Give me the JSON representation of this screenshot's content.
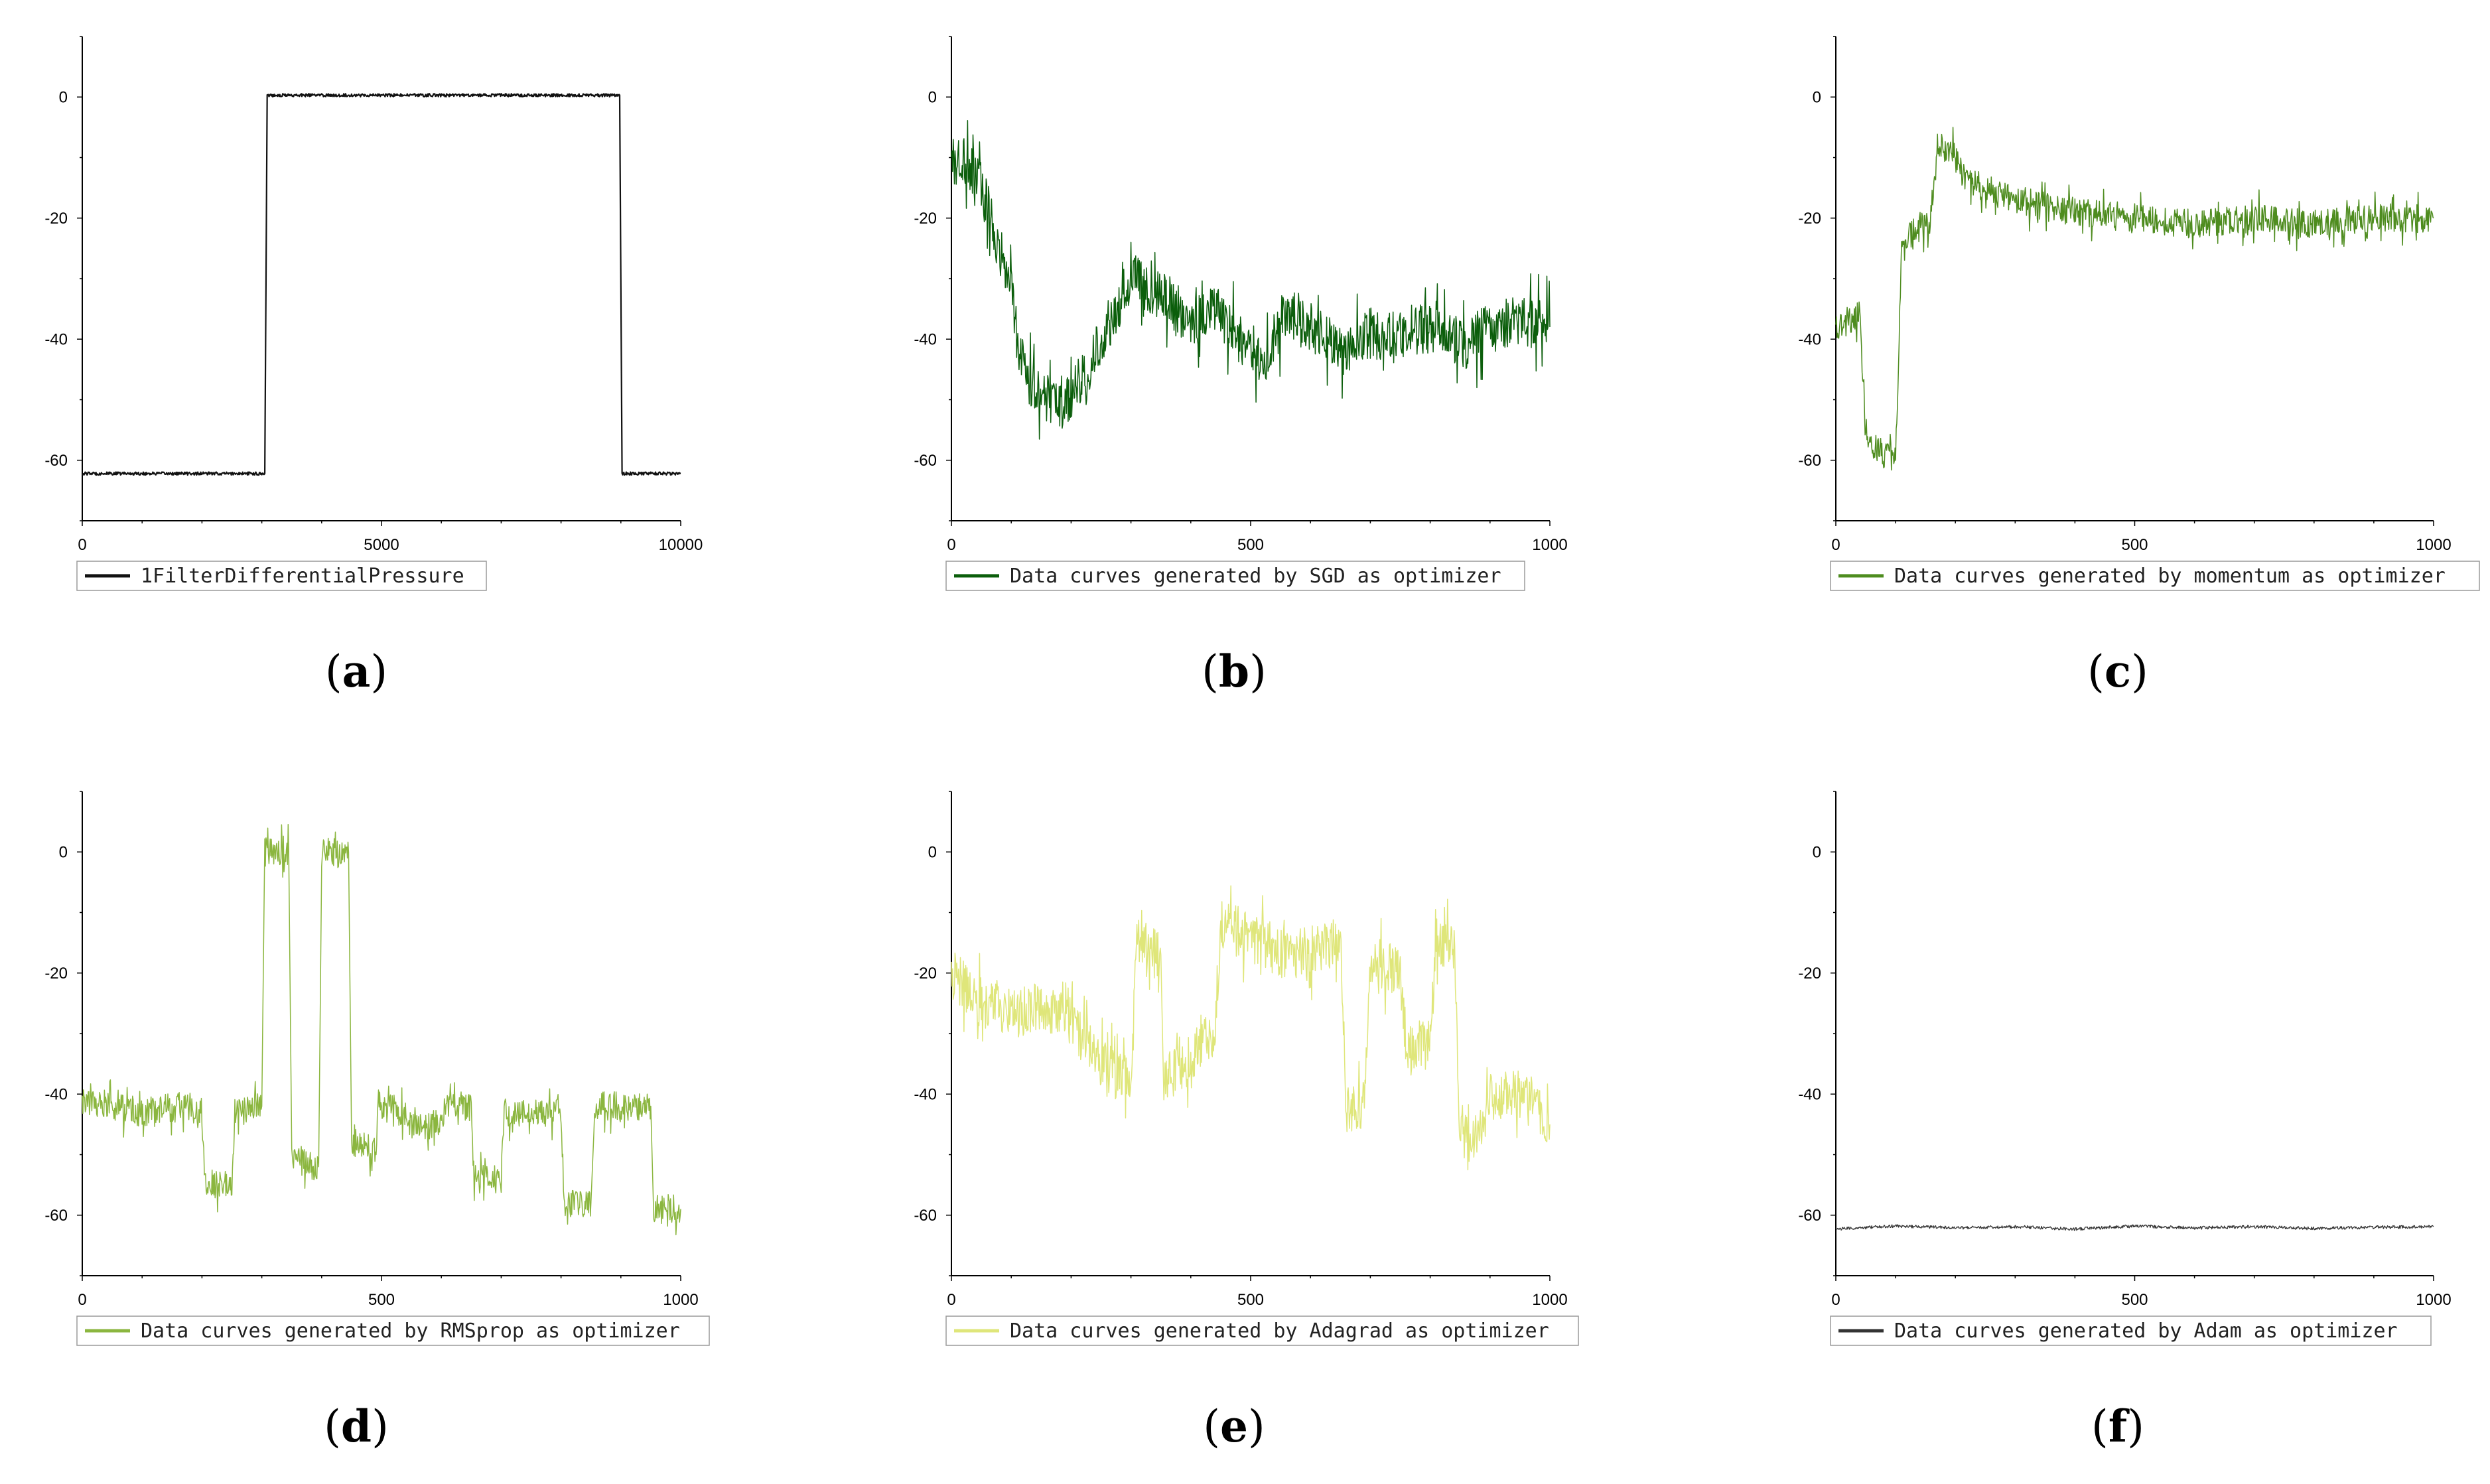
{
  "chart_data": [
    {
      "id": "a",
      "type": "line",
      "panel_label": "a",
      "xlim": [
        0,
        10000
      ],
      "ylim": [
        -70,
        10
      ],
      "x_ticks": [
        0,
        5000,
        10000
      ],
      "y_ticks": [
        0,
        -20,
        -40,
        -60
      ],
      "grid": false,
      "legend_position": "bottom",
      "series": [
        {
          "name": "1FilterDifferentialPressure",
          "color": "#111111",
          "line_width": 2.2,
          "noise": "tiny",
          "points": [
            [
              0,
              -62.2
            ],
            [
              3050,
              -62.2
            ],
            [
              3090,
              0.3
            ],
            [
              8980,
              0.3
            ],
            [
              9020,
              -62.2
            ],
            [
              10000,
              -62.2
            ]
          ]
        }
      ]
    },
    {
      "id": "b",
      "type": "line",
      "panel_label": "b",
      "xlim": [
        0,
        1000
      ],
      "ylim": [
        -70,
        10
      ],
      "x_ticks": [
        0,
        500,
        1000
      ],
      "y_ticks": [
        0,
        -20,
        -40,
        -60
      ],
      "grid": false,
      "legend_position": "bottom",
      "series": [
        {
          "name": "Data curves generated by SGD as optimizer",
          "color": "#0b5e0b",
          "line_width": 1.5,
          "noise": "high",
          "points": [
            [
              0,
              -10
            ],
            [
              40,
              -12
            ],
            [
              60,
              -18
            ],
            [
              80,
              -25
            ],
            [
              100,
              -32
            ],
            [
              110,
              -40
            ],
            [
              130,
              -47
            ],
            [
              180,
              -52
            ],
            [
              230,
              -45
            ],
            [
              260,
              -38
            ],
            [
              300,
              -30
            ],
            [
              360,
              -33
            ],
            [
              400,
              -38
            ],
            [
              440,
              -35
            ],
            [
              480,
              -40
            ],
            [
              520,
              -43
            ],
            [
              560,
              -36
            ],
            [
              600,
              -38
            ],
            [
              660,
              -42
            ],
            [
              700,
              -39
            ],
            [
              740,
              -40
            ],
            [
              800,
              -38
            ],
            [
              860,
              -41
            ],
            [
              900,
              -38
            ],
            [
              960,
              -37
            ],
            [
              1000,
              -38
            ]
          ]
        }
      ]
    },
    {
      "id": "c",
      "type": "line",
      "panel_label": "c",
      "xlim": [
        0,
        1000
      ],
      "ylim": [
        -70,
        10
      ],
      "x_ticks": [
        0,
        500,
        1000
      ],
      "y_ticks": [
        0,
        -20,
        -40,
        -60
      ],
      "grid": false,
      "legend_position": "bottom",
      "series": [
        {
          "name": "Data curves generated by momentum as optimizer",
          "color": "#4e8c1f",
          "line_width": 1.5,
          "noise": "mid",
          "points": [
            [
              0,
              -38
            ],
            [
              40,
              -36
            ],
            [
              50,
              -57
            ],
            [
              100,
              -60
            ],
            [
              110,
              -24
            ],
            [
              160,
              -20
            ],
            [
              170,
              -8
            ],
            [
              200,
              -10
            ],
            [
              220,
              -14
            ],
            [
              300,
              -17
            ],
            [
              400,
              -19
            ],
            [
              500,
              -20
            ],
            [
              600,
              -21
            ],
            [
              700,
              -20
            ],
            [
              800,
              -21
            ],
            [
              900,
              -20
            ],
            [
              1000,
              -20
            ]
          ]
        }
      ]
    },
    {
      "id": "d",
      "type": "line",
      "panel_label": "d",
      "xlim": [
        0,
        1000
      ],
      "ylim": [
        -70,
        10
      ],
      "x_ticks": [
        0,
        500,
        1000
      ],
      "y_ticks": [
        0,
        -20,
        -40,
        -60
      ],
      "grid": false,
      "legend_position": "bottom",
      "series": [
        {
          "name": "Data curves generated by RMSprop as optimizer",
          "color": "#8bb63f",
          "line_width": 1.5,
          "noise": "mid",
          "points": [
            [
              0,
              -41
            ],
            [
              100,
              -43
            ],
            [
              160,
              -42
            ],
            [
              200,
              -43
            ],
            [
              205,
              -54
            ],
            [
              250,
              -56
            ],
            [
              255,
              -43
            ],
            [
              300,
              -42
            ],
            [
              305,
              0
            ],
            [
              345,
              0
            ],
            [
              350,
              -51
            ],
            [
              395,
              -52
            ],
            [
              400,
              0
            ],
            [
              445,
              0
            ],
            [
              450,
              -48
            ],
            [
              490,
              -49
            ],
            [
              495,
              -42
            ],
            [
              540,
              -43
            ],
            [
              545,
              -45
            ],
            [
              600,
              -45
            ],
            [
              605,
              -42
            ],
            [
              650,
              -42
            ],
            [
              655,
              -54
            ],
            [
              700,
              -54
            ],
            [
              705,
              -43
            ],
            [
              800,
              -43
            ],
            [
              805,
              -58
            ],
            [
              850,
              -58
            ],
            [
              855,
              -42
            ],
            [
              950,
              -42
            ],
            [
              955,
              -59
            ],
            [
              1000,
              -59
            ]
          ]
        }
      ]
    },
    {
      "id": "e",
      "type": "line",
      "panel_label": "e",
      "xlim": [
        0,
        1000
      ],
      "ylim": [
        -70,
        10
      ],
      "x_ticks": [
        0,
        500,
        1000
      ],
      "y_ticks": [
        0,
        -20,
        -40,
        -60
      ],
      "grid": false,
      "legend_position": "bottom",
      "series": [
        {
          "name": "Data curves generated by Adagrad as optimizer",
          "color": "#dfe67a",
          "line_width": 1.5,
          "noise": "high",
          "points": [
            [
              0,
              -20
            ],
            [
              50,
              -25
            ],
            [
              100,
              -27
            ],
            [
              150,
              -25
            ],
            [
              200,
              -28
            ],
            [
              250,
              -35
            ],
            [
              300,
              -38
            ],
            [
              310,
              -15
            ],
            [
              350,
              -17
            ],
            [
              355,
              -38
            ],
            [
              400,
              -34
            ],
            [
              440,
              -30
            ],
            [
              450,
              -12
            ],
            [
              500,
              -14
            ],
            [
              560,
              -17
            ],
            [
              650,
              -15
            ],
            [
              660,
              -42
            ],
            [
              690,
              -42
            ],
            [
              700,
              -18
            ],
            [
              750,
              -20
            ],
            [
              760,
              -32
            ],
            [
              800,
              -32
            ],
            [
              810,
              -15
            ],
            [
              840,
              -15
            ],
            [
              850,
              -47
            ],
            [
              880,
              -47
            ],
            [
              900,
              -40
            ],
            [
              950,
              -40
            ],
            [
              1000,
              -45
            ]
          ]
        }
      ]
    },
    {
      "id": "f",
      "type": "line",
      "panel_label": "f",
      "xlim": [
        0,
        1000
      ],
      "ylim": [
        -70,
        10
      ],
      "x_ticks": [
        0,
        500,
        1000
      ],
      "y_ticks": [
        0,
        -20,
        -40,
        -60
      ],
      "grid": false,
      "legend_position": "bottom",
      "series": [
        {
          "name": "Data curves generated by Adam as optimizer",
          "color": "#333333",
          "line_width": 1.3,
          "noise": "tiny",
          "points": [
            [
              0,
              -62.3
            ],
            [
              100,
              -61.8
            ],
            [
              200,
              -62.1
            ],
            [
              300,
              -61.9
            ],
            [
              400,
              -62.3
            ],
            [
              500,
              -61.8
            ],
            [
              600,
              -62.1
            ],
            [
              700,
              -61.9
            ],
            [
              800,
              -62.2
            ],
            [
              900,
              -62.0
            ],
            [
              1000,
              -61.9
            ]
          ]
        }
      ]
    }
  ]
}
